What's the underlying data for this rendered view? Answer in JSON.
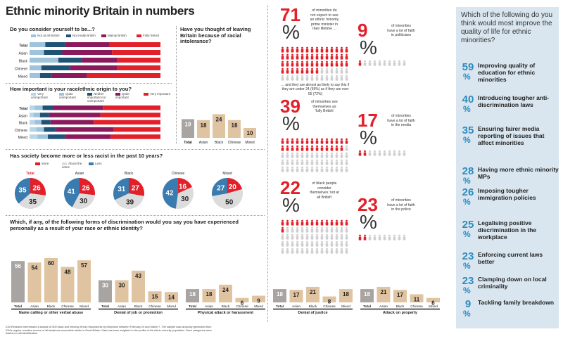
{
  "title": "Ethnic minority Britain in numbers",
  "colors": {
    "red": "#e2202a",
    "purple": "#8a1a5c",
    "navy": "#1f5277",
    "lightblue": "#9ec4dc",
    "tan": "#e0c3a0",
    "grey": "#a8a4a2",
    "blue": "#3a7bb0",
    "lightgrey": "#dcdcdc",
    "sidebar": "#d9e6ef"
  },
  "q1": {
    "question": "Do you consider yourself to be...?",
    "legend": [
      "Not at all British",
      "Not really British",
      "Mainly British",
      "Fully British"
    ],
    "rows": [
      "Total",
      "Asian",
      "Black",
      "Chinese",
      "Mixed"
    ]
  },
  "q2": {
    "question": "How important is your race/ethnic origin to you?",
    "legend": [
      "Very unimportant",
      "Quite unimportant",
      "Neither important nor unimportant",
      "Quite important",
      "Very important"
    ],
    "rows": [
      "Total",
      "Asian",
      "Black",
      "Chinese",
      "Mixed"
    ]
  },
  "q3": {
    "question": "Have you thought of leaving Britain because of racial intolerance?"
  },
  "q4": {
    "question": "Has society become more or less racist in the past 10 years?",
    "legend": [
      "More",
      "About the same",
      "Less"
    ]
  },
  "q5": {
    "question": "Which, if any, of the following forms of discrimination would you say you have experienced personally as a result of your race or ethnic identity?",
    "categories": [
      "Name calling or other verbal abuse",
      "Denial of job or promotion",
      "Physical attack or harassment",
      "Denial of justice",
      "Attack on property"
    ]
  },
  "stats": [
    {
      "num": "71",
      "pct": "%",
      "text": "of minorities do not expect to see an ethnic minority prime minister in their lifetime ...",
      "extra": "... and they are almost as likely to say this if they are under 24 (69%) as if they are over 55 (72%)"
    },
    {
      "num": "9",
      "pct": "%",
      "text": "of minorities have a lot of faith in politicians"
    },
    {
      "num": "39",
      "pct": "%",
      "text": "of minorities see themselves as 'fully British'"
    },
    {
      "num": "17",
      "pct": "%",
      "text": "of minorities have a lot of faith in the media"
    },
    {
      "num": "22",
      "pct": "%",
      "text": "of black people consider themselves 'not at all British'"
    },
    {
      "num": "23",
      "pct": "%",
      "text": "of minorities have a lot of faith in the police"
    }
  ],
  "sidebar": {
    "question": "Which of the following do you think would most improve the quality of life for ethnic minorities?",
    "items": [
      {
        "num": "59",
        "pct": "%",
        "label": "Improving quality of education for ethnic minorities"
      },
      {
        "num": "40",
        "pct": "%",
        "label": "Introducing tougher anti-discrimination laws"
      },
      {
        "num": "35",
        "pct": "%",
        "label": "Ensuring fairer media reporting of issues that affect minorities"
      },
      {
        "num": "28",
        "pct": "%",
        "label": "Having more ethnic minority MPs"
      },
      {
        "num": "26",
        "pct": "%",
        "label": "Imposing tougher immigration policies"
      },
      {
        "num": "25",
        "pct": "%",
        "label": "Legalising positive discrimination in the workplace"
      },
      {
        "num": "23",
        "pct": "%",
        "label": "Enforcing current laws better"
      },
      {
        "num": "23",
        "pct": "%",
        "label": "Clamping down on local criminality"
      },
      {
        "num": "9",
        "pct": "%",
        "label": "Tackling family breakdown"
      }
    ]
  },
  "footnote": "ICM Research interviewed a sample of 500 black and minority ethnic respondents by telephone between February 24 and March 7. The sample was randomly generated from ICM's regular omnibus service of all telephone-accessible adults in Great Britain. Data has been weighted to the profile of the ethnic minority population. Race categories were based on self-identification.",
  "chart_data": [
    {
      "type": "bar",
      "orientation": "horizontal-stacked",
      "title": "Do you consider yourself to be...?",
      "categories": [
        "Total",
        "Asian",
        "Black",
        "Chinese",
        "Mixed"
      ],
      "series": [
        {
          "name": "Not at all British",
          "values": [
            12,
            11,
            22,
            9,
            8
          ]
        },
        {
          "name": "Not really British",
          "values": [
            15,
            14,
            18,
            22,
            9
          ]
        },
        {
          "name": "Mainly British",
          "values": [
            34,
            38,
            27,
            36,
            27
          ]
        },
        {
          "name": "Fully British",
          "values": [
            39,
            37,
            33,
            33,
            56
          ]
        }
      ]
    },
    {
      "type": "bar",
      "orientation": "horizontal-stacked",
      "title": "How important is your race/ethnic origin to you?",
      "categories": [
        "Total",
        "Asian",
        "Black",
        "Chinese",
        "Mixed"
      ],
      "series": [
        {
          "name": "Very unimportant",
          "values": [
            4,
            3,
            4,
            5,
            6
          ]
        },
        {
          "name": "Quite unimportant",
          "values": [
            6,
            5,
            5,
            6,
            8
          ]
        },
        {
          "name": "Neither important nor unimportant",
          "values": [
            8,
            7,
            7,
            9,
            13
          ]
        },
        {
          "name": "Quite important",
          "values": [
            38,
            39,
            33,
            44,
            35
          ]
        },
        {
          "name": "Very important",
          "values": [
            44,
            46,
            51,
            36,
            38
          ]
        }
      ]
    },
    {
      "type": "bar",
      "title": "Have you thought of leaving Britain because of racial intolerance?",
      "categories": [
        "Total",
        "Asian",
        "Black",
        "Chinese",
        "Mixed"
      ],
      "values": [
        19,
        18,
        24,
        18,
        10
      ]
    },
    {
      "type": "pie",
      "title": "Has society become more or less racist in the past 10 years?",
      "groups": [
        {
          "name": "Total",
          "more": 26,
          "same": 35,
          "less": 35
        },
        {
          "name": "Asian",
          "more": 26,
          "same": 30,
          "less": 41
        },
        {
          "name": "Black",
          "more": 27,
          "same": 39,
          "less": 31
        },
        {
          "name": "Chinese",
          "more": 16,
          "same": 30,
          "less": 42
        },
        {
          "name": "Mixed",
          "more": 20,
          "same": 50,
          "less": 27
        }
      ]
    },
    {
      "type": "bar",
      "title": "Which, if any, of the following forms of discrimination would you say you have experienced personally as a result of your race or ethnic identity?",
      "groups": [
        {
          "category": "Name calling or other verbal abuse",
          "labels": [
            "Total",
            "Asian",
            "Black",
            "Chinese",
            "Mixed"
          ],
          "values": [
            56,
            54,
            60,
            48,
            57
          ]
        },
        {
          "category": "Denial of job or promotion",
          "labels": [
            "Total",
            "Asian",
            "Black",
            "Chinese",
            "Mixed"
          ],
          "values": [
            30,
            30,
            43,
            15,
            14
          ]
        },
        {
          "category": "Physical attack or harassment",
          "labels": [
            "Total",
            "Asian",
            "Black",
            "Chinese",
            "Mixed"
          ],
          "values": [
            18,
            18,
            24,
            6,
            9
          ]
        },
        {
          "category": "Denial of justice",
          "labels": [
            "Total",
            "Asian",
            "Black",
            "Chinese",
            "Mixed"
          ],
          "values": [
            18,
            17,
            21,
            8,
            18
          ]
        },
        {
          "category": "Attack on property",
          "labels": [
            "Total",
            "Asian",
            "Black",
            "Chinese",
            "Mixed"
          ],
          "values": [
            18,
            21,
            17,
            11,
            6
          ]
        }
      ]
    }
  ]
}
